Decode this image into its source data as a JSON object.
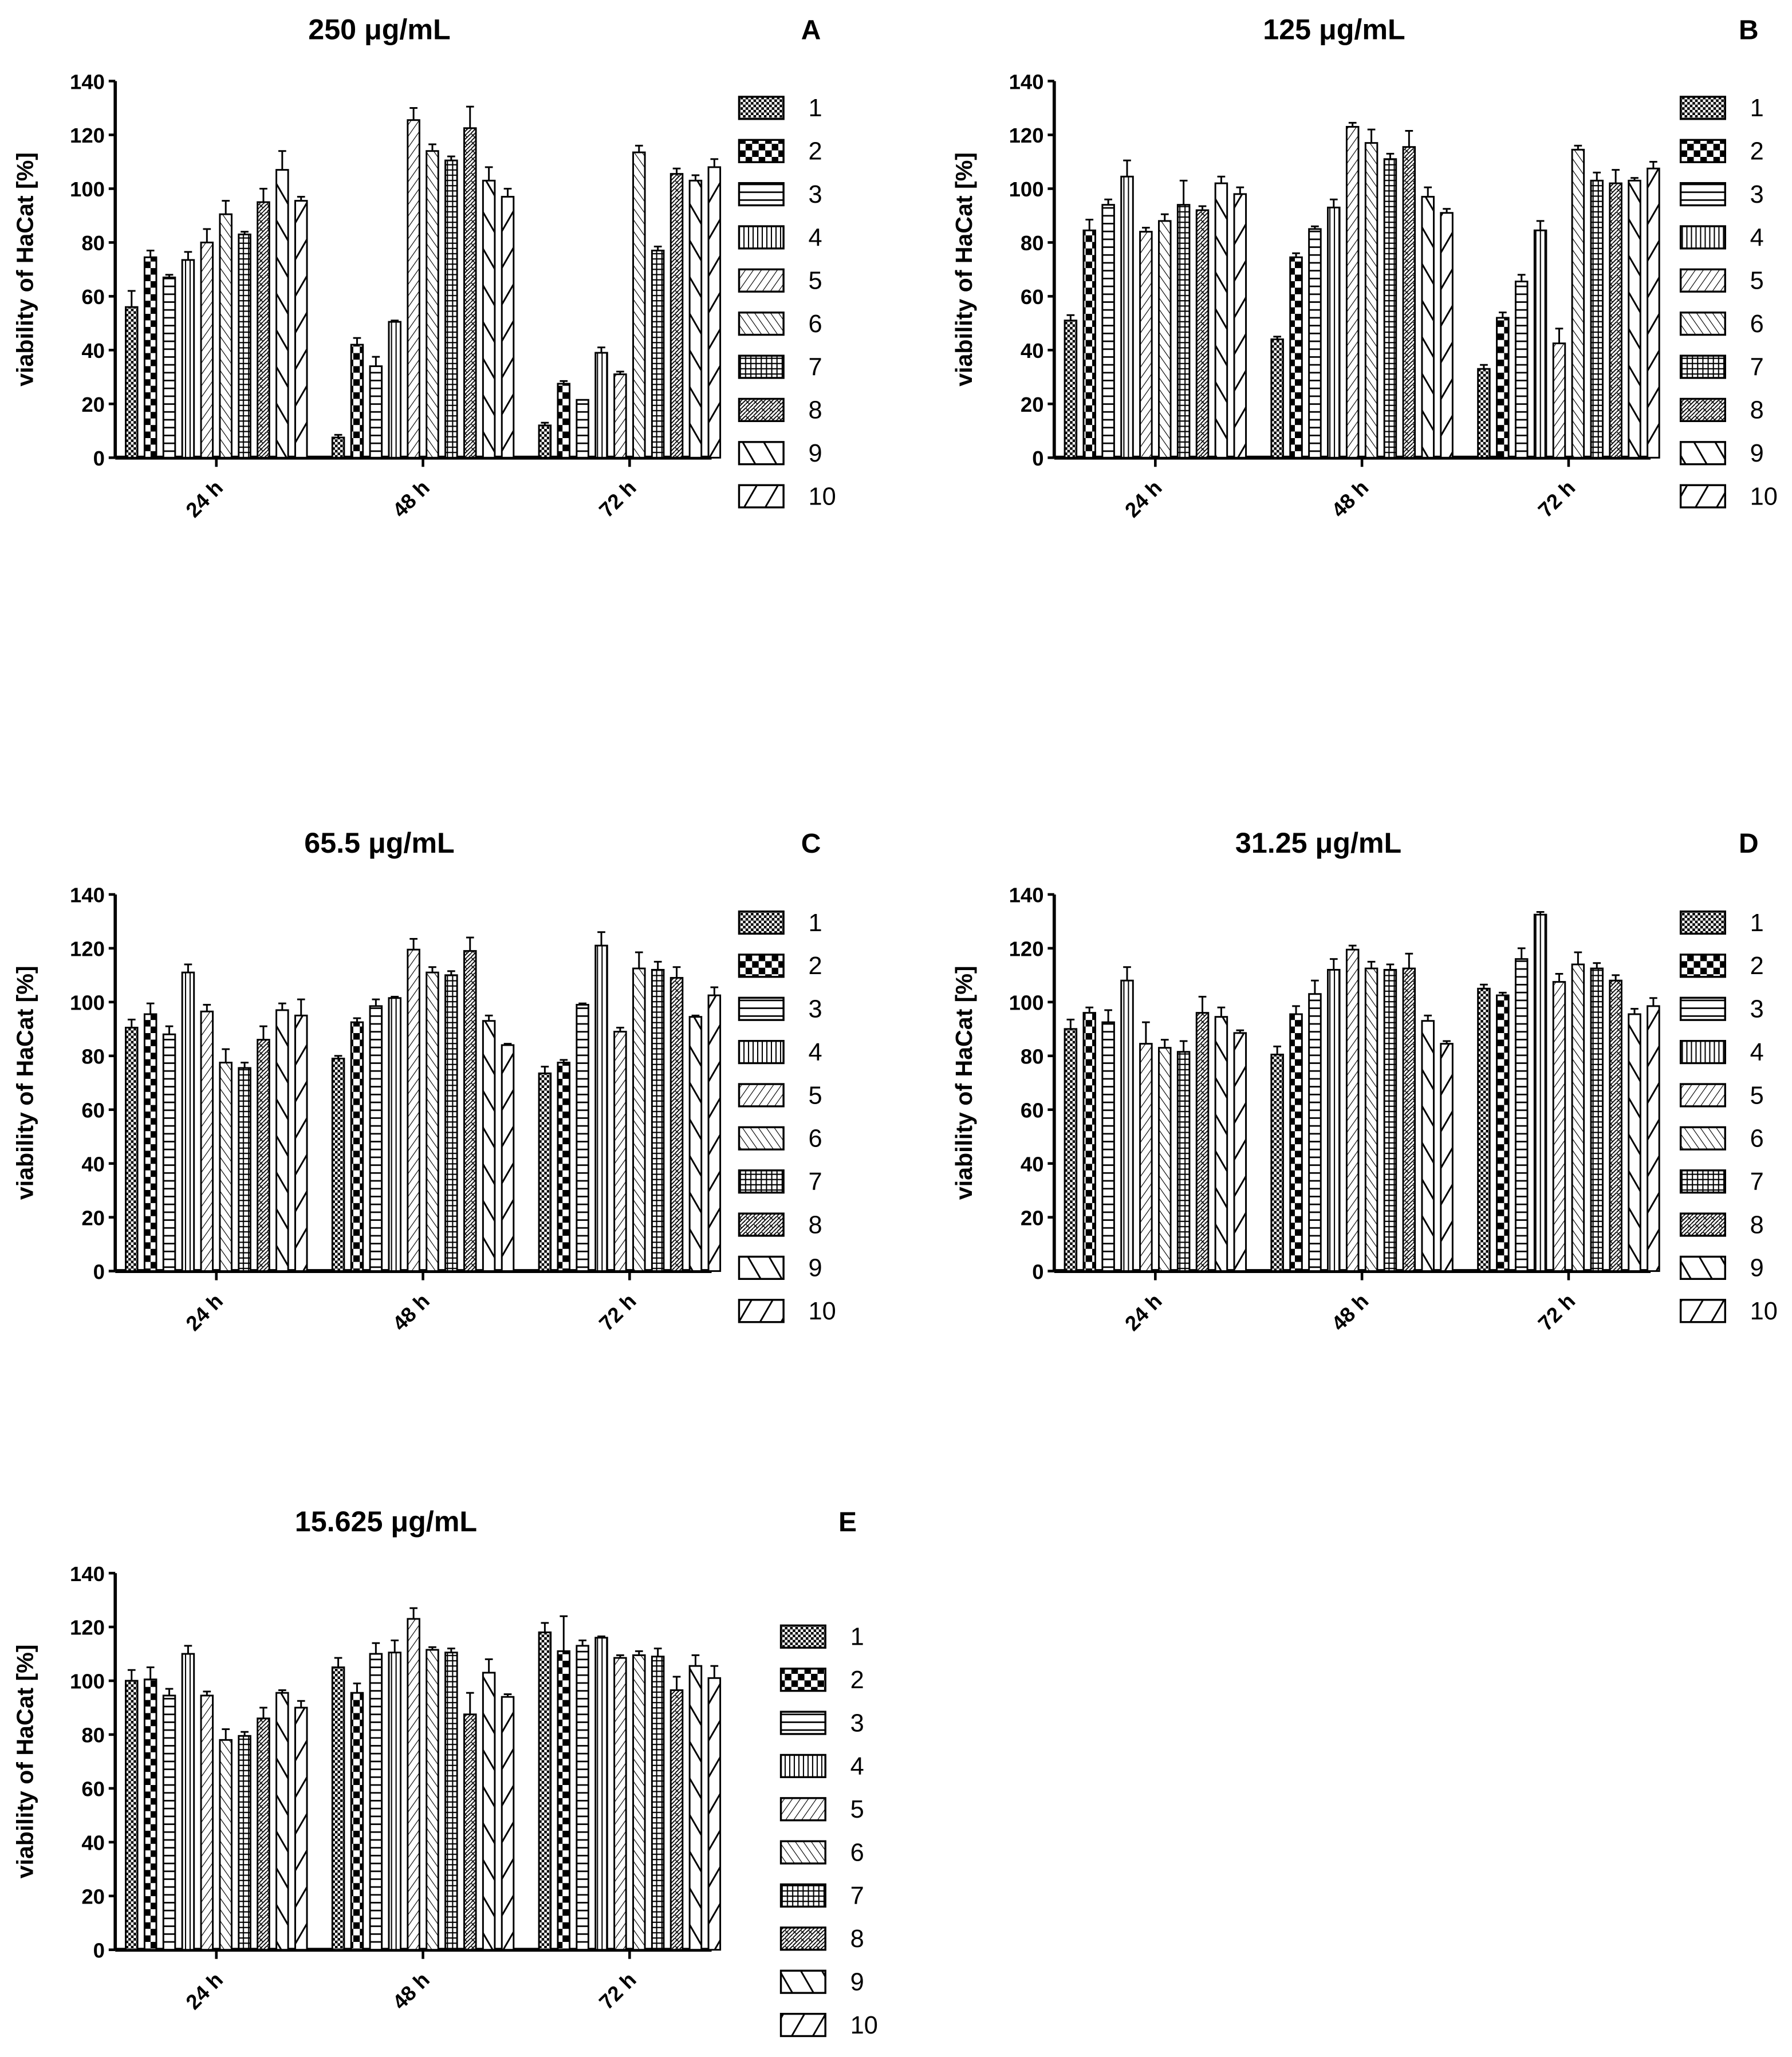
{
  "chart_data": [
    {
      "panel": "A",
      "title": "250 μg/mL",
      "type": "bar",
      "ylabel": "viability of HaCat [%]",
      "ylim": [
        0,
        140
      ],
      "yticks": [
        0,
        20,
        40,
        60,
        80,
        100,
        120,
        140
      ],
      "categories": [
        "24 h",
        "48 h",
        "72 h"
      ],
      "legend": [
        "1",
        "2",
        "3",
        "4",
        "5",
        "6",
        "7",
        "8",
        "9",
        "10"
      ],
      "legend_position": "right",
      "grid": false,
      "series_values": [
        [
          56,
          74.5,
          67,
          73.5,
          80,
          90.5,
          83,
          95,
          107,
          95.5
        ],
        [
          7.5,
          42,
          34,
          50.5,
          125.5,
          114,
          110.5,
          122.5,
          103,
          97
        ],
        [
          12,
          27.5,
          21.5,
          39,
          31,
          113.5,
          77,
          105.5,
          103,
          108
        ]
      ],
      "errors": [
        [
          6,
          2.5,
          1,
          3,
          5,
          5,
          1,
          5,
          7,
          1.5
        ],
        [
          1,
          2.5,
          3.5,
          0.5,
          4.5,
          2.5,
          1.5,
          8,
          5,
          3
        ],
        [
          1,
          1,
          0,
          2,
          1,
          2.5,
          1.5,
          2,
          2,
          3
        ]
      ]
    },
    {
      "panel": "B",
      "title": "125 μg/mL",
      "type": "bar",
      "ylabel": "viability of HaCat [%]",
      "ylim": [
        0,
        140
      ],
      "yticks": [
        0,
        20,
        40,
        60,
        80,
        100,
        120,
        140
      ],
      "categories": [
        "24 h",
        "48 h",
        "72 h"
      ],
      "legend": [
        "1",
        "2",
        "3",
        "4",
        "5",
        "6",
        "7",
        "8",
        "9",
        "10"
      ],
      "legend_position": "right",
      "grid": false,
      "series_values": [
        [
          51,
          84.5,
          94,
          104.5,
          84,
          88,
          94,
          92,
          102,
          98
        ],
        [
          44,
          74.5,
          85,
          93,
          123,
          117,
          111,
          115.5,
          97,
          91
        ],
        [
          33,
          52,
          65.5,
          84.5,
          42.5,
          114.5,
          103,
          102,
          103,
          107.5
        ]
      ],
      "errors": [
        [
          2,
          4,
          2,
          6,
          1.5,
          2.5,
          9,
          1.5,
          2.5,
          2.5
        ],
        [
          1,
          1.5,
          1,
          3,
          1.5,
          5,
          2,
          6,
          3.5,
          1.5
        ],
        [
          1.5,
          2,
          2.5,
          3.5,
          5.5,
          1.5,
          3,
          5,
          1,
          2.5
        ]
      ]
    },
    {
      "panel": "C",
      "title": "65.5 μg/mL",
      "type": "bar",
      "ylabel": "viability of HaCat [%]",
      "ylim": [
        0,
        140
      ],
      "yticks": [
        0,
        20,
        40,
        60,
        80,
        100,
        120,
        140
      ],
      "categories": [
        "24 h",
        "48 h",
        "72 h"
      ],
      "legend": [
        "1",
        "2",
        "3",
        "4",
        "5",
        "6",
        "7",
        "8",
        "9",
        "10"
      ],
      "legend_position": "right",
      "grid": false,
      "series_values": [
        [
          90.5,
          95.5,
          88,
          111,
          96.5,
          77.5,
          75.5,
          86,
          97,
          95
        ],
        [
          79,
          92.5,
          98.5,
          101.5,
          119.5,
          111,
          110,
          119,
          93,
          84
        ],
        [
          73.5,
          77.5,
          99,
          121,
          89,
          112.5,
          112,
          109,
          94.5,
          102.5
        ]
      ],
      "errors": [
        [
          3,
          4,
          3,
          3,
          2.5,
          5,
          2,
          5,
          2.5,
          6
        ],
        [
          1,
          1.5,
          2.5,
          0.5,
          4,
          2,
          1.5,
          5,
          2,
          0.5
        ],
        [
          2.5,
          1,
          0.5,
          5,
          1.5,
          6,
          3,
          4,
          0.5,
          3
        ]
      ]
    },
    {
      "panel": "D",
      "title": "31.25 μg/mL",
      "type": "bar",
      "ylabel": "viability of HaCat [%]",
      "ylim": [
        0,
        140
      ],
      "yticks": [
        0,
        20,
        40,
        60,
        80,
        100,
        120,
        140
      ],
      "categories": [
        "24 h",
        "48 h",
        "72 h"
      ],
      "legend": [
        "1",
        "2",
        "3",
        "4",
        "5",
        "6",
        "7",
        "8",
        "9",
        "10"
      ],
      "legend_position": "right",
      "grid": false,
      "series_values": [
        [
          90,
          96,
          92.5,
          108,
          84.5,
          83,
          81.5,
          96,
          94.5,
          88.5
        ],
        [
          80.5,
          95.5,
          103,
          112,
          119.5,
          112.5,
          112,
          112.5,
          93,
          84.5
        ],
        [
          105,
          102.5,
          116,
          132.5,
          107.5,
          114,
          112.5,
          108,
          95.5,
          98.5
        ]
      ],
      "errors": [
        [
          3.5,
          2,
          4.5,
          5,
          8,
          3,
          4,
          6,
          3.5,
          1
        ],
        [
          3,
          3,
          5,
          4,
          1.5,
          2.5,
          2,
          5.5,
          2,
          1
        ],
        [
          1.5,
          1,
          4,
          1,
          3,
          4.5,
          2,
          2,
          2,
          3
        ]
      ]
    },
    {
      "panel": "E",
      "title": "15.625 μg/mL",
      "type": "bar",
      "ylabel": "viability of HaCat [%]",
      "ylim": [
        0,
        140
      ],
      "yticks": [
        0,
        20,
        40,
        60,
        80,
        100,
        120,
        140
      ],
      "categories": [
        "24 h",
        "48 h",
        "72 h"
      ],
      "legend": [
        "1",
        "2",
        "3",
        "4",
        "5",
        "6",
        "7",
        "8",
        "9",
        "10"
      ],
      "legend_position": "right",
      "grid": false,
      "series_values": [
        [
          100,
          100.5,
          94.5,
          110,
          94.5,
          78,
          79.5,
          86,
          95.5,
          90
        ],
        [
          105,
          95.5,
          110,
          110.5,
          123,
          111.5,
          110.5,
          87.5,
          103,
          94
        ],
        [
          118,
          111,
          113,
          116,
          108.5,
          109.5,
          109,
          96.5,
          105.5,
          101
        ]
      ],
      "errors": [
        [
          4,
          4.5,
          2.5,
          3,
          1.5,
          4,
          1.5,
          4,
          1,
          2.5
        ],
        [
          3.5,
          3.5,
          4,
          4.5,
          4,
          1,
          1.5,
          8,
          5,
          1
        ],
        [
          3.5,
          13,
          2,
          0.5,
          1,
          1.5,
          3,
          5,
          4,
          4.5
        ]
      ]
    }
  ],
  "colors": {
    "ink": "#000000",
    "background": "#ffffff"
  },
  "fill_patterns": [
    "fine-checker",
    "coarse-checker",
    "horizontal-lines",
    "vertical-lines",
    "thin-forward-diagonal",
    "thin-back-diagonal",
    "grid",
    "zigzag",
    "thick-back-diagonal",
    "thick-forward-diagonal"
  ]
}
